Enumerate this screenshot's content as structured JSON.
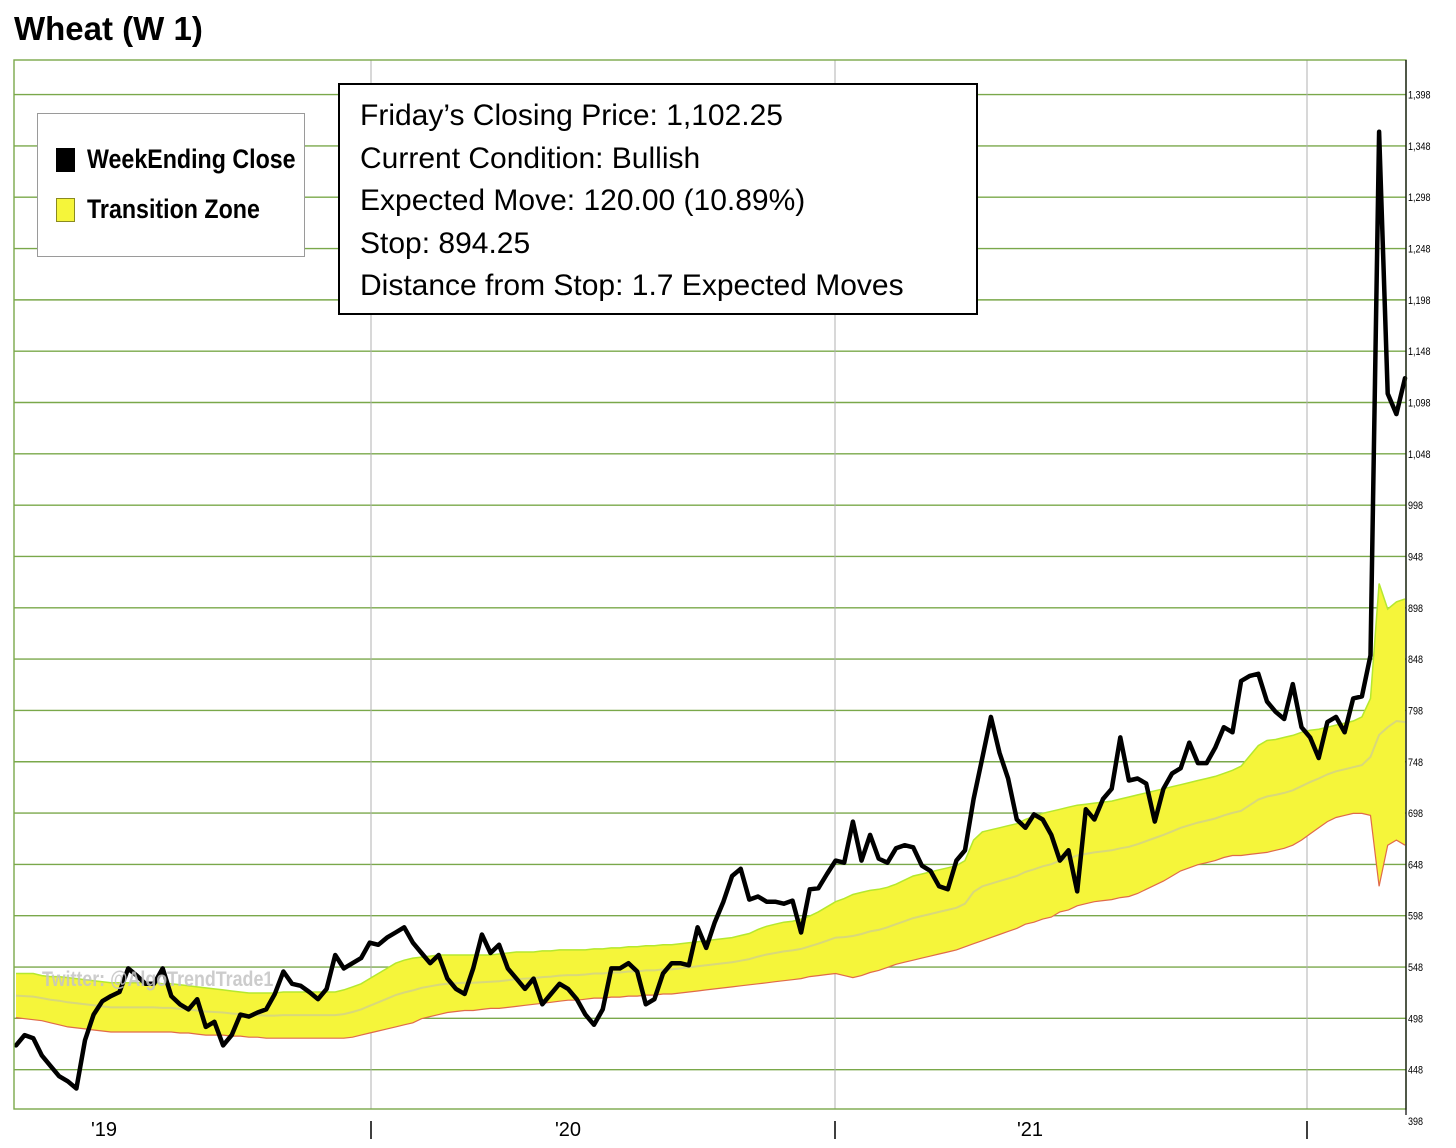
{
  "chart_data": {
    "type": "line",
    "title": "Wheat (W 1)",
    "legend": {
      "placement": "top-left",
      "entries": [
        {
          "label": "WeekEnding Close",
          "color": "#000000"
        },
        {
          "label": "Transition Zone",
          "color": "#f5f53a"
        }
      ]
    },
    "info": {
      "lines": [
        "Friday’s Closing Price: 1,102.25",
        "Current Condition: Bullish",
        "Expected Move: 120.00 (10.89%)",
        "Stop: 894.25",
        "Distance from Stop: 1.7 Expected Moves"
      ]
    },
    "watermark": "Twitter: @AlgoTrendTrade1",
    "x_labels": [
      "'19",
      "'20",
      "'21"
    ],
    "y_ticks": [
      "1,398",
      "1,348",
      "1,298",
      "1,248",
      "1,198",
      "1,148",
      "1,098",
      "1,048",
      "998",
      "948",
      "898",
      "848",
      "798",
      "748",
      "698",
      "648",
      "598",
      "548",
      "498",
      "448",
      "398"
    ],
    "ylim": [
      398,
      1420
    ],
    "grid": true,
    "colors": {
      "close": "#000000",
      "zone_fill": "#f5f53a",
      "zone_upper": "#b5e82e",
      "zone_lower": "#e06a4a",
      "zone_mid": "#d8d87a",
      "grid": "#7aa84a"
    },
    "close": [
      460,
      470,
      467,
      450,
      440,
      430,
      425,
      418,
      465,
      490,
      503,
      508,
      512,
      535,
      528,
      520,
      520,
      535,
      508,
      500,
      495,
      505,
      478,
      483,
      460,
      470,
      490,
      488,
      492,
      495,
      510,
      532,
      520,
      518,
      512,
      505,
      515,
      548,
      535,
      540,
      545,
      560,
      558,
      565,
      570,
      575,
      560,
      550,
      540,
      548,
      525,
      515,
      510,
      535,
      568,
      550,
      558,
      535,
      525,
      515,
      525,
      500,
      510,
      520,
      515,
      505,
      490,
      480,
      495,
      535,
      535,
      540,
      532,
      500,
      505,
      530,
      540,
      540,
      538,
      575,
      555,
      580,
      600,
      625,
      632,
      602,
      605,
      600,
      600,
      598,
      601,
      570,
      612,
      613,
      627,
      640,
      638,
      678,
      640,
      665,
      642,
      638,
      652,
      655,
      653,
      635,
      630,
      615,
      612,
      640,
      650,
      700,
      740,
      780,
      745,
      720,
      680,
      672,
      685,
      680,
      665,
      640,
      650,
      610,
      690,
      680,
      700,
      710,
      760,
      718,
      720,
      715,
      678,
      710,
      725,
      730,
      755,
      735,
      735,
      750,
      770,
      765,
      815,
      820,
      822,
      795,
      785,
      778,
      812,
      770,
      760,
      740,
      775,
      780,
      765,
      798,
      800,
      840,
      1350,
      1095,
      1075,
      1110
    ],
    "zone_upper": [
      530,
      530,
      530,
      528,
      527,
      527,
      526,
      525,
      524,
      523,
      522,
      521,
      521,
      521,
      521,
      521,
      521,
      520,
      520,
      519,
      518,
      517,
      516,
      515,
      514,
      513,
      512,
      511,
      511,
      511,
      511,
      512,
      512,
      512,
      512,
      512,
      512,
      512,
      514,
      517,
      520,
      525,
      530,
      535,
      540,
      543,
      545,
      546,
      547,
      548,
      548,
      548,
      548,
      548,
      548,
      548,
      549,
      550,
      551,
      551,
      551,
      552,
      552,
      553,
      553,
      553,
      553,
      554,
      554,
      555,
      555,
      556,
      556,
      557,
      557,
      558,
      558,
      559,
      560,
      561,
      562,
      563,
      564,
      565,
      567,
      569,
      573,
      576,
      578,
      580,
      581,
      583,
      586,
      590,
      595,
      600,
      603,
      607,
      609,
      611,
      612,
      614,
      617,
      621,
      625,
      627,
      629,
      631,
      633,
      635,
      640,
      660,
      668,
      670,
      672,
      674,
      676,
      680,
      683,
      686,
      688,
      690,
      692,
      694,
      695,
      696,
      697,
      698,
      700,
      702,
      704,
      706,
      708,
      710,
      712,
      714,
      716,
      718,
      720,
      722,
      725,
      728,
      732,
      742,
      752,
      757,
      758,
      760,
      762,
      765,
      767,
      768,
      770,
      772,
      774,
      776,
      780,
      798,
      910,
      885,
      892,
      895
    ],
    "zone_lower": [
      487,
      486,
      485,
      484,
      482,
      480,
      478,
      477,
      476,
      475,
      474,
      473,
      473,
      473,
      473,
      473,
      473,
      473,
      473,
      472,
      472,
      471,
      470,
      470,
      470,
      469,
      469,
      468,
      468,
      467,
      467,
      467,
      467,
      467,
      467,
      467,
      467,
      467,
      467,
      468,
      470,
      472,
      474,
      476,
      478,
      480,
      482,
      486,
      488,
      490,
      492,
      493,
      494,
      494,
      495,
      496,
      496,
      497,
      498,
      499,
      500,
      501,
      502,
      503,
      504,
      504,
      505,
      506,
      506,
      507,
      507,
      508,
      508,
      509,
      509,
      510,
      510,
      511,
      512,
      513,
      514,
      515,
      516,
      517,
      518,
      519,
      520,
      521,
      522,
      523,
      524,
      525,
      527,
      528,
      529,
      530,
      528,
      526,
      528,
      531,
      533,
      536,
      539,
      541,
      543,
      545,
      547,
      549,
      551,
      553,
      556,
      559,
      562,
      565,
      568,
      571,
      574,
      578,
      580,
      583,
      585,
      590,
      592,
      596,
      598,
      600,
      601,
      602,
      604,
      605,
      608,
      612,
      616,
      620,
      625,
      630,
      633,
      636,
      638,
      640,
      643,
      645,
      645,
      646,
      647,
      648,
      650,
      652,
      655,
      660,
      666,
      672,
      678,
      682,
      684,
      686,
      686,
      684,
      615,
      655,
      660,
      655
    ]
  }
}
